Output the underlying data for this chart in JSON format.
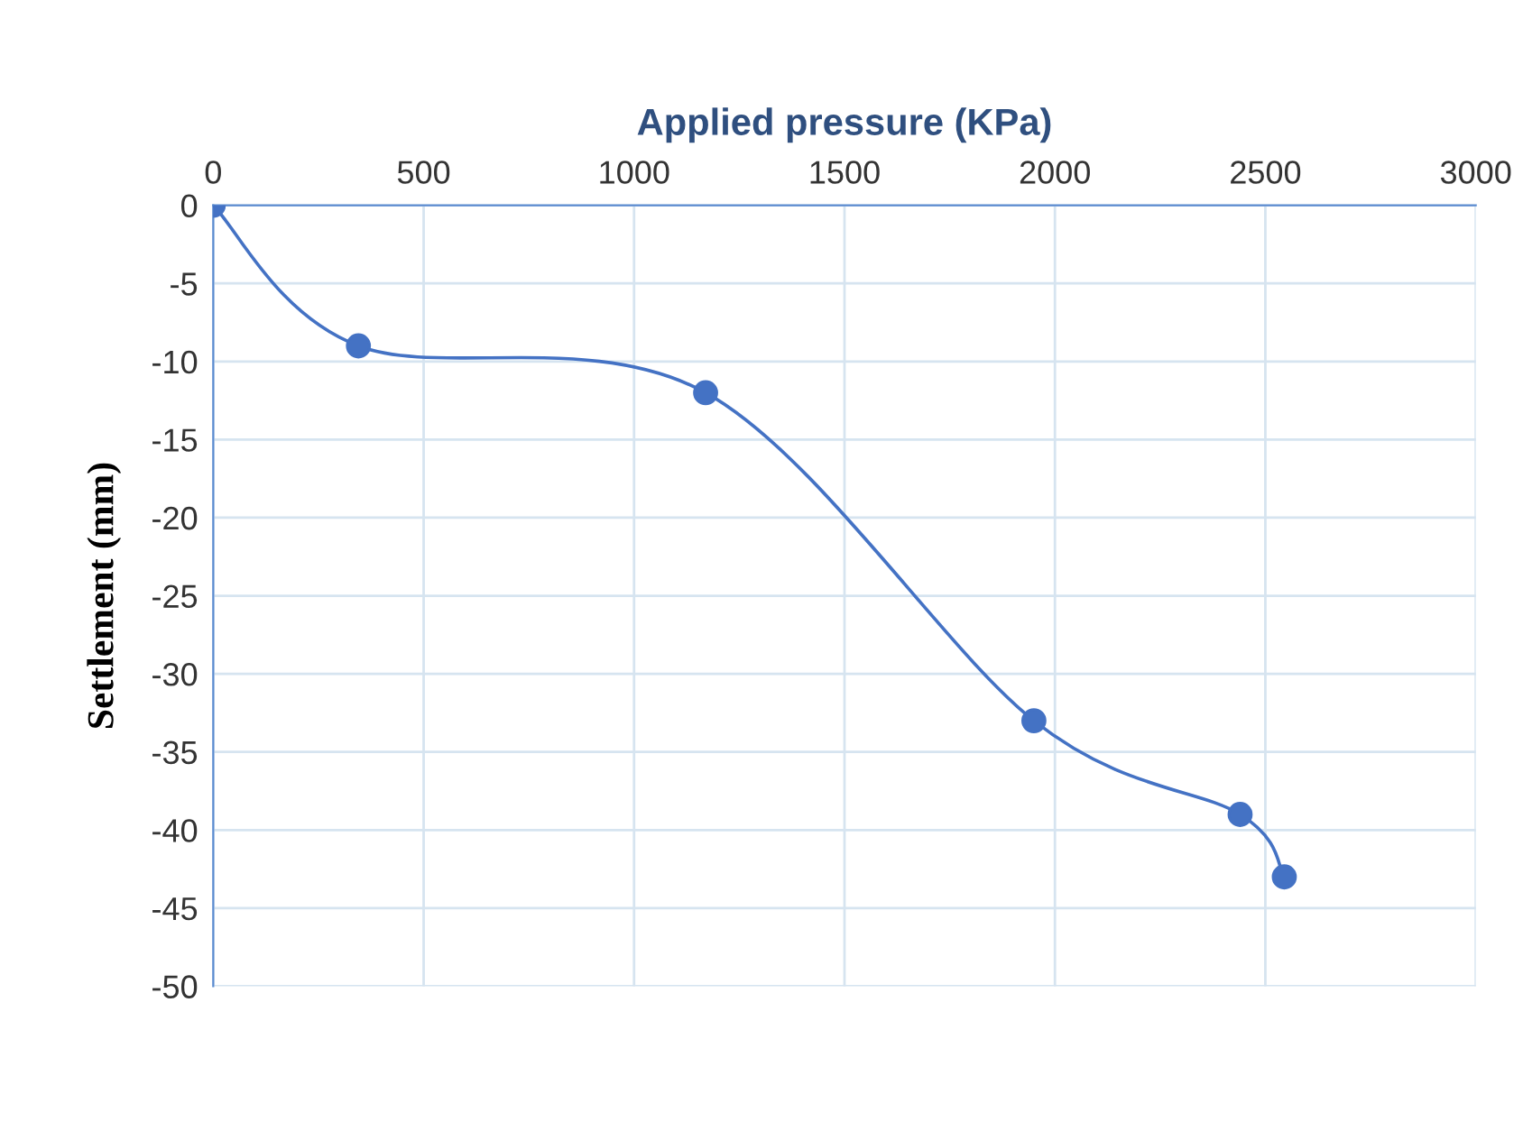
{
  "chart_data": {
    "type": "line",
    "xlabel": "Applied pressure (KPa)",
    "ylabel": "Settlement (mm)",
    "x": [
      0,
      345,
      1170,
      1950,
      2440,
      2545
    ],
    "series": [
      {
        "color": "#4472c4",
        "values": [
          0,
          -9,
          -12,
          -33,
          -39,
          -43
        ]
      }
    ],
    "xlim": [
      0,
      3000
    ],
    "xticks": [
      0,
      500,
      1000,
      1500,
      2000,
      2500,
      3000
    ],
    "ylim": [
      -50,
      0
    ],
    "yticks": [
      0,
      -5,
      -10,
      -15,
      -20,
      -25,
      -30,
      -35,
      -40,
      -45,
      -50
    ],
    "grid": true,
    "marker": "circle",
    "line_style": "solid"
  }
}
